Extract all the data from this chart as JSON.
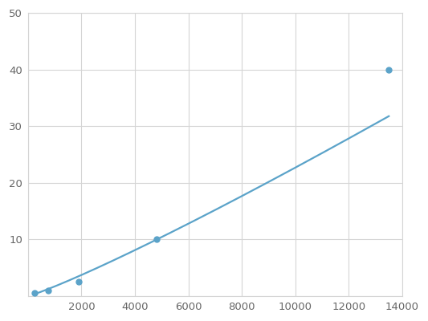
{
  "x": [
    250,
    750,
    1900,
    4800,
    13500
  ],
  "y": [
    0.5,
    1.0,
    2.5,
    10.0,
    40.0
  ],
  "line_color": "#5ba3c9",
  "marker_color": "#5ba3c9",
  "marker_size": 5,
  "line_width": 1.6,
  "xlim": [
    0,
    14000
  ],
  "ylim": [
    0,
    50
  ],
  "xticks": [
    0,
    2000,
    4000,
    6000,
    8000,
    10000,
    12000,
    14000
  ],
  "yticks": [
    0,
    10,
    20,
    30,
    40,
    50
  ],
  "grid_color": "#d5d5d5",
  "background_color": "#ffffff",
  "tick_label_color": "#666666",
  "tick_fontsize": 9.5
}
